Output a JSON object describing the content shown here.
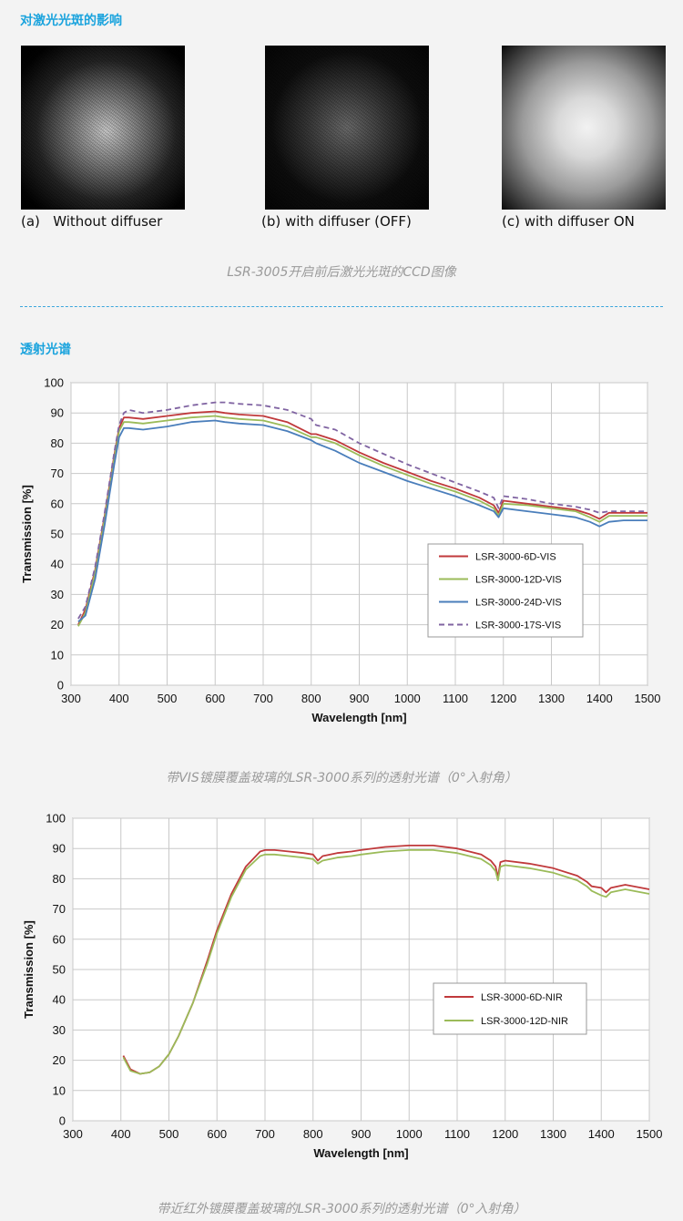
{
  "section1_title": "对激光光斑的影响",
  "spots": [
    {
      "caption": "(a)   Without diffuser",
      "style": "speckle"
    },
    {
      "caption": "(b) with diffuser (OFF)",
      "style": "speckle-dim"
    },
    {
      "caption": "(c) with diffuser ON",
      "style": "smooth"
    }
  ],
  "spots_caption": "LSR-3005开启前后激光光斑的CCD图像",
  "section2_title": "透射光谱",
  "chart1_caption": "带VIS镀膜覆盖玻璃的LSR-3000系列的透射光谱（0°入射角）",
  "chart2_caption": "带近红外镀膜覆盖玻璃的LSR-3000系列的透射光谱（0°入射角）",
  "colors": {
    "red": "#c0393b",
    "green": "#9bbb59",
    "blue": "#4a7ebb",
    "purple": "#8064a2",
    "accent": "#1aa3dd"
  },
  "chart_data": [
    {
      "type": "line",
      "xlabel": "Wavelength [nm]",
      "ylabel": "Transmission [%]",
      "xlim": [
        300,
        1500
      ],
      "ylim": [
        0,
        100
      ],
      "xticks": [
        300,
        400,
        500,
        600,
        700,
        800,
        900,
        1000,
        1100,
        1200,
        1300,
        1400,
        1500
      ],
      "yticks": [
        0,
        10,
        20,
        30,
        40,
        50,
        60,
        70,
        80,
        90,
        100
      ],
      "grid": true,
      "legend_position": "right",
      "series": [
        {
          "name": "LSR-3000-6D-VIS",
          "color": "#c0393b",
          "dash": false,
          "x": [
            315,
            330,
            350,
            370,
            390,
            400,
            410,
            420,
            450,
            500,
            550,
            600,
            620,
            650,
            700,
            750,
            800,
            810,
            850,
            900,
            950,
            1000,
            1050,
            1100,
            1150,
            1180,
            1190,
            1200,
            1250,
            1300,
            1350,
            1380,
            1400,
            1420,
            1450,
            1500
          ],
          "y": [
            20,
            25,
            38,
            56,
            76,
            85,
            88.5,
            88.5,
            88,
            89,
            90,
            90.5,
            90,
            89.5,
            89,
            87,
            83,
            83,
            81,
            77,
            73.5,
            70.5,
            67.5,
            65,
            62,
            59.5,
            57,
            61,
            60,
            59,
            58,
            56.5,
            55,
            57,
            57,
            57
          ]
        },
        {
          "name": "LSR-3000-12D-VIS",
          "color": "#9bbb59",
          "dash": false,
          "x": [
            315,
            330,
            350,
            370,
            390,
            400,
            410,
            420,
            450,
            500,
            550,
            600,
            620,
            650,
            700,
            750,
            800,
            810,
            850,
            900,
            950,
            1000,
            1050,
            1100,
            1150,
            1180,
            1190,
            1200,
            1250,
            1300,
            1350,
            1380,
            1400,
            1420,
            1450,
            1500
          ],
          "y": [
            19.5,
            24,
            37,
            55,
            75,
            84,
            87,
            87,
            86.5,
            87.5,
            88.5,
            89,
            88.5,
            88,
            87.5,
            85.5,
            82,
            82,
            80,
            76,
            72.5,
            69.5,
            66.5,
            64,
            61,
            58.5,
            56,
            60,
            59.5,
            58.5,
            57.5,
            55.5,
            54,
            56,
            56,
            56
          ]
        },
        {
          "name": "LSR-3000-24D-VIS",
          "color": "#4a7ebb",
          "dash": false,
          "x": [
            315,
            330,
            350,
            370,
            390,
            400,
            410,
            420,
            450,
            500,
            550,
            600,
            620,
            650,
            700,
            750,
            800,
            810,
            850,
            900,
            950,
            1000,
            1050,
            1100,
            1150,
            1180,
            1190,
            1200,
            1250,
            1300,
            1350,
            1380,
            1400,
            1420,
            1450,
            1500
          ],
          "y": [
            21,
            23,
            35,
            53,
            73,
            82,
            85,
            85,
            84.5,
            85.5,
            87,
            87.5,
            87,
            86.5,
            86,
            84,
            81,
            80,
            77.5,
            73.5,
            70.5,
            67.5,
            65,
            62.5,
            59.5,
            57.5,
            55.5,
            58.5,
            57.5,
            56.5,
            55.5,
            54,
            52.5,
            54,
            54.5,
            54.5
          ]
        },
        {
          "name": "LSR-3000-17S-VIS",
          "color": "#8064a2",
          "dash": true,
          "x": [
            315,
            330,
            350,
            370,
            390,
            400,
            410,
            420,
            450,
            500,
            550,
            600,
            620,
            650,
            700,
            750,
            800,
            810,
            850,
            900,
            950,
            1000,
            1050,
            1100,
            1150,
            1180,
            1190,
            1200,
            1250,
            1300,
            1350,
            1380,
            1400,
            1420,
            1450,
            1500
          ],
          "y": [
            22,
            26,
            39,
            57,
            77,
            86,
            90,
            91,
            90,
            91,
            92.5,
            93.5,
            93.5,
            93,
            92.5,
            91,
            88,
            86,
            84.5,
            80,
            76.5,
            73,
            70,
            67,
            64,
            62,
            58.5,
            62.5,
            61.5,
            60,
            59,
            58,
            57,
            57.5,
            57.5,
            57.5
          ]
        }
      ]
    },
    {
      "type": "line",
      "xlabel": "Wavelength [nm]",
      "ylabel": "Transmission [%]",
      "xlim": [
        300,
        1500
      ],
      "ylim": [
        0,
        100
      ],
      "xticks": [
        300,
        400,
        500,
        600,
        700,
        800,
        900,
        1000,
        1100,
        1200,
        1300,
        1400,
        1500
      ],
      "yticks": [
        0,
        10,
        20,
        30,
        40,
        50,
        60,
        70,
        80,
        90,
        100
      ],
      "grid": true,
      "legend_position": "right",
      "series": [
        {
          "name": "LSR-3000-6D-NIR",
          "color": "#c0393b",
          "dash": false,
          "x": [
            405,
            420,
            440,
            460,
            480,
            500,
            520,
            550,
            580,
            600,
            630,
            660,
            690,
            700,
            720,
            750,
            780,
            800,
            810,
            820,
            850,
            880,
            900,
            950,
            1000,
            1050,
            1100,
            1150,
            1170,
            1180,
            1185,
            1190,
            1200,
            1250,
            1300,
            1350,
            1370,
            1380,
            1400,
            1410,
            1420,
            1450,
            1500
          ],
          "y": [
            21.5,
            17,
            15.5,
            16,
            18,
            22,
            28,
            39,
            53,
            63,
            75,
            84,
            89,
            89.5,
            89.5,
            89,
            88.5,
            88,
            86,
            87.5,
            88.5,
            89,
            89.5,
            90.5,
            91,
            91,
            90,
            88,
            86,
            84,
            80.5,
            85.5,
            86,
            85,
            83.5,
            81,
            79,
            77.5,
            77,
            75.5,
            77,
            78,
            76.5
          ]
        },
        {
          "name": "LSR-3000-12D-NIR",
          "color": "#9bbb59",
          "dash": false,
          "x": [
            405,
            420,
            440,
            460,
            480,
            500,
            520,
            550,
            580,
            600,
            630,
            660,
            690,
            700,
            720,
            750,
            780,
            800,
            810,
            820,
            850,
            880,
            900,
            950,
            1000,
            1050,
            1100,
            1150,
            1170,
            1180,
            1185,
            1190,
            1200,
            1250,
            1300,
            1350,
            1370,
            1380,
            1400,
            1410,
            1420,
            1450,
            1500
          ],
          "y": [
            21,
            16.5,
            15.5,
            16,
            18,
            22,
            28,
            39,
            52,
            62,
            74,
            83,
            87.5,
            88,
            88,
            87.5,
            87,
            86.5,
            85,
            86,
            87,
            87.5,
            88,
            89,
            89.5,
            89.5,
            88.5,
            86.5,
            84.5,
            82.5,
            79.5,
            84,
            84.5,
            83.5,
            82,
            79.5,
            77.5,
            76,
            74.5,
            74,
            75.5,
            76.5,
            75
          ]
        }
      ]
    }
  ]
}
